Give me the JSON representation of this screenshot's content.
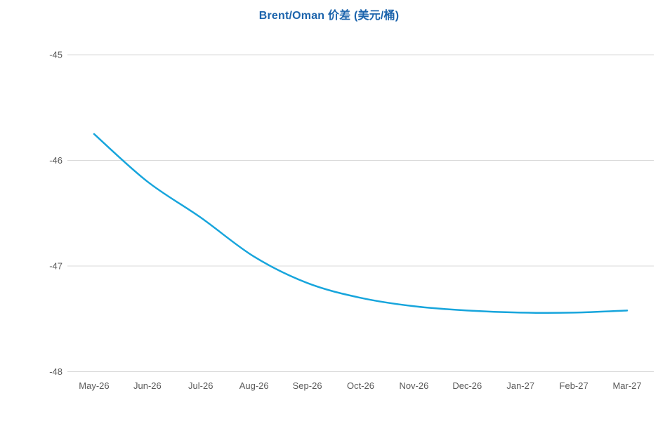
{
  "title": "Brent/Oman 价差 (美元/桶)",
  "colors": {
    "title": "#1C64AC",
    "line": "#17A5DC",
    "gridline": "#D9D9D9",
    "axis_label": "#595959",
    "background": "#FFFFFF"
  },
  "chart_data": {
    "type": "line",
    "title": "Brent/Oman 价差 (美元/桶)",
    "categories": [
      "May-26",
      "Jun-26",
      "Jul-26",
      "Aug-26",
      "Sep-26",
      "Oct-26",
      "Nov-26",
      "Dec-26",
      "Jan-27",
      "Feb-27",
      "Mar-27"
    ],
    "series": [
      {
        "name": "Brent/Oman 价差",
        "values": [
          -45.75,
          -46.2,
          -46.54,
          -46.91,
          -47.16,
          -47.3,
          -47.38,
          -47.42,
          -47.44,
          -47.44,
          -47.42
        ]
      }
    ],
    "xlabel": "",
    "ylabel": "",
    "ylim": [
      -48,
      -45
    ],
    "yticks": [
      -45,
      -46,
      -47,
      -48
    ],
    "grid": "horizontal",
    "legend": "none",
    "smooth": true
  }
}
